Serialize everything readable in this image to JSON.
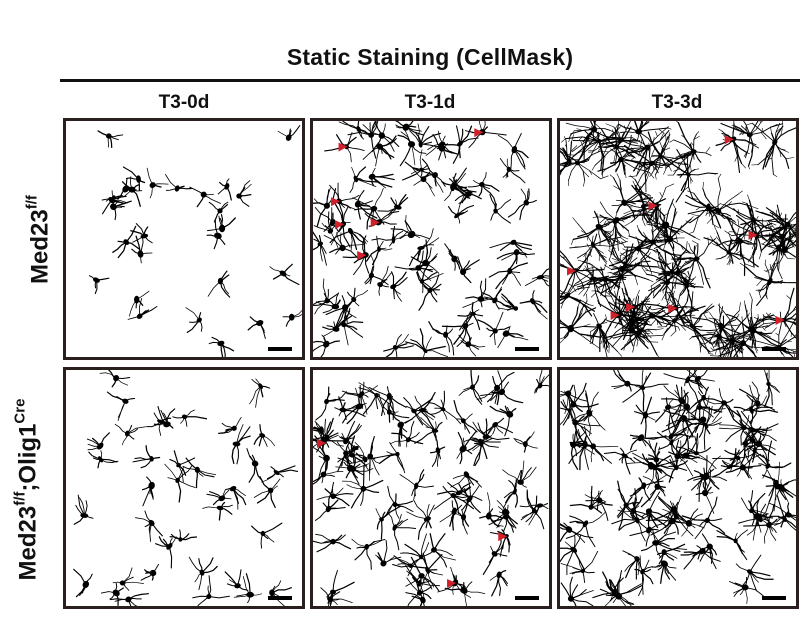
{
  "figure": {
    "header": "Static Staining (CellMask)",
    "columns": [
      "T3-0d",
      "T3-1d",
      "T3-3d"
    ],
    "rows": [
      {
        "base": "Med23",
        "sup1": "f/f",
        "mid": "",
        "sup2": ""
      },
      {
        "base": "Med23",
        "sup1": "f/f",
        "mid": ";Olig1",
        "sup2": "Cre"
      }
    ]
  },
  "panels": [
    {
      "id": "r1c1",
      "density": 28,
      "branchiness": 2,
      "seed": 11,
      "arrowheads": 0
    },
    {
      "id": "r1c2",
      "density": 75,
      "branchiness": 4,
      "seed": 23,
      "arrowheads": 7
    },
    {
      "id": "r1c3",
      "density": 70,
      "branchiness": 9,
      "seed": 37,
      "arrowheads": 8
    },
    {
      "id": "r2c1",
      "density": 38,
      "branchiness": 3,
      "seed": 41,
      "arrowheads": 0
    },
    {
      "id": "r2c2",
      "density": 80,
      "branchiness": 4,
      "seed": 53,
      "arrowheads": 3
    },
    {
      "id": "r2c3",
      "density": 90,
      "branchiness": 5,
      "seed": 67,
      "arrowheads": 0
    }
  ],
  "colors": {
    "cells": "#000000",
    "arrowhead": "#d0202a",
    "border": "#2a1f1f"
  }
}
